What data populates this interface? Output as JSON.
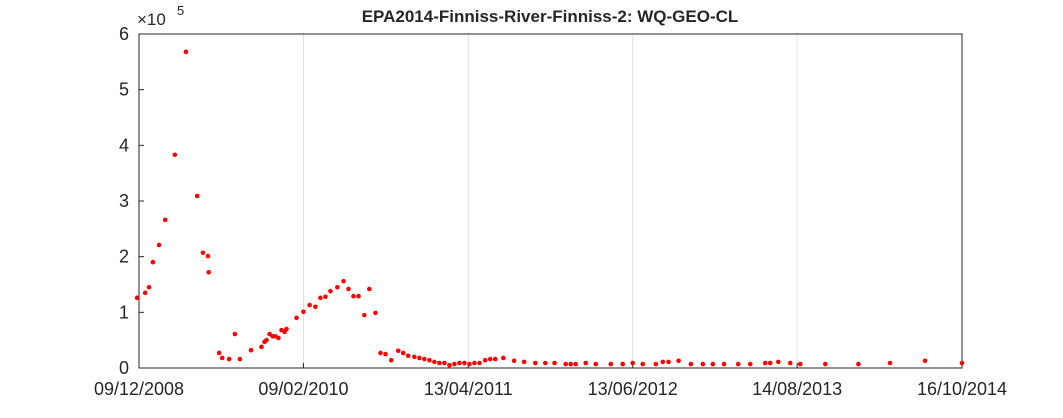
{
  "chart_data": {
    "type": "scatter",
    "title": "EPA2014-Finniss-River-Finniss-2: WQ-GEO-CL",
    "y_multiplier": "×10",
    "y_exponent": "5",
    "color": "#ff0000",
    "xgrid": true,
    "ygrid": false,
    "xlim": [
      "2008-12-09",
      "2014-10-16"
    ],
    "xticks": [
      {
        "value": "2008-12-09",
        "label": "09/12/2008"
      },
      {
        "value": "2010-02-09",
        "label": "09/02/2010"
      },
      {
        "value": "2011-04-13",
        "label": "13/04/2011"
      },
      {
        "value": "2012-06-13",
        "label": "13/06/2012"
      },
      {
        "value": "2013-08-14",
        "label": "14/08/2013"
      },
      {
        "value": "2014-10-16",
        "label": "16/10/2014"
      }
    ],
    "ylim": [
      0,
      600000
    ],
    "yticks": [
      0,
      {
        "value": 100000,
        "label": "1"
      },
      {
        "value": 200000,
        "label": "2"
      },
      {
        "value": 300000,
        "label": "3"
      },
      {
        "value": 400000,
        "label": "4"
      },
      {
        "value": 500000,
        "label": "5"
      },
      {
        "value": 600000,
        "label": "6"
      }
    ],
    "x": [
      "2008-12-04",
      "2008-12-25",
      "2009-01-04",
      "2009-01-14",
      "2009-01-30",
      "2009-02-15",
      "2009-03-12",
      "2009-04-10",
      "2009-05-09",
      "2009-05-24",
      "2009-06-06",
      "2009-06-08",
      "2009-07-05",
      "2009-07-13",
      "2009-07-31",
      "2009-08-15",
      "2009-08-28",
      "2009-09-26",
      "2009-10-23",
      "2009-10-31",
      "2009-11-05",
      "2009-11-13",
      "2009-11-21",
      "2009-11-28",
      "2009-12-06",
      "2009-12-14",
      "2009-12-22",
      "2009-12-27",
      "2010-01-22",
      "2010-02-09",
      "2010-02-25",
      "2010-03-12",
      "2010-03-25",
      "2010-04-07",
      "2010-04-20",
      "2010-05-08",
      "2010-05-24",
      "2010-06-06",
      "2010-06-19",
      "2010-07-02",
      "2010-07-17",
      "2010-07-30",
      "2010-08-15",
      "2010-08-28",
      "2010-09-10",
      "2010-09-25",
      "2010-10-13",
      "2010-10-26",
      "2010-11-08",
      "2010-11-24",
      "2010-12-07",
      "2010-12-20",
      "2011-01-02",
      "2011-01-15",
      "2011-01-28",
      "2011-02-10",
      "2011-02-23",
      "2011-03-08",
      "2011-03-21",
      "2011-04-03",
      "2011-04-16",
      "2011-04-29",
      "2011-05-12",
      "2011-05-27",
      "2011-06-09",
      "2011-06-22",
      "2011-07-13",
      "2011-08-10",
      "2011-09-05",
      "2011-10-04",
      "2011-10-30",
      "2011-11-23",
      "2011-12-22",
      "2012-01-04",
      "2012-01-17",
      "2012-02-12",
      "2012-03-09",
      "2012-04-17",
      "2012-05-18",
      "2012-06-13",
      "2012-07-09",
      "2012-08-12",
      "2012-08-30",
      "2012-09-14",
      "2012-10-10",
      "2012-11-11",
      "2012-12-12",
      "2013-01-07",
      "2013-02-05",
      "2013-03-14",
      "2013-04-14",
      "2013-05-23",
      "2013-06-05",
      "2013-06-26",
      "2013-07-27",
      "2013-08-22",
      "2013-10-26",
      "2014-01-20",
      "2014-04-12",
      "2014-07-12",
      "2014-10-16"
    ],
    "values": [
      126000,
      135000,
      145000,
      190000,
      221000,
      266000,
      383000,
      568000,
      309000,
      207000,
      201000,
      172000,
      27000,
      18000,
      16000,
      61000,
      16000,
      32000,
      38000,
      47000,
      50000,
      61000,
      57000,
      57000,
      54000,
      68000,
      65000,
      70000,
      90000,
      101000,
      113000,
      110000,
      126000,
      128000,
      138000,
      145000,
      156000,
      142000,
      129000,
      129000,
      95000,
      142000,
      99000,
      27000,
      25000,
      14000,
      31000,
      27000,
      22000,
      20000,
      18000,
      16000,
      14000,
      11000,
      9000,
      9000,
      5000,
      7000,
      9000,
      9000,
      7000,
      9000,
      9000,
      14000,
      16000,
      16000,
      18000,
      13000,
      11000,
      9000,
      9000,
      9000,
      7000,
      7000,
      7000,
      9000,
      7000,
      7000,
      7000,
      9000,
      7000,
      7000,
      11000,
      11000,
      13000,
      7000,
      7000,
      7000,
      7000,
      7000,
      7000,
      9000,
      9000,
      11000,
      9000,
      7000,
      7000,
      7000,
      9000,
      13000,
      9000
    ]
  }
}
